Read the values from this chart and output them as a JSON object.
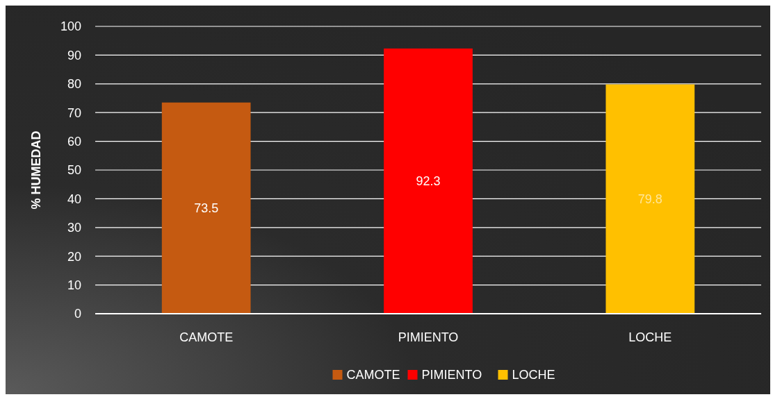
{
  "chart_data": {
    "type": "bar",
    "ylabel": "% HUMEDAD",
    "categories": [
      "CAMOTE",
      "PIMIENTO",
      "LOCHE"
    ],
    "series": [
      {
        "name": "CAMOTE",
        "color": "#c55a11",
        "values": [
          73.5,
          null,
          null
        ]
      },
      {
        "name": "PIMIENTO",
        "color": "#ff0000",
        "values": [
          null,
          92.3,
          null
        ]
      },
      {
        "name": "LOCHE",
        "color": "#ffc000",
        "values": [
          null,
          null,
          79.8
        ]
      }
    ],
    "stacked": true,
    "ylim": [
      0,
      100
    ],
    "yticks": [
      0,
      10,
      20,
      30,
      40,
      50,
      60,
      70,
      80,
      90,
      100
    ],
    "grid": "y",
    "legend": "bottom",
    "data_labels": true
  }
}
